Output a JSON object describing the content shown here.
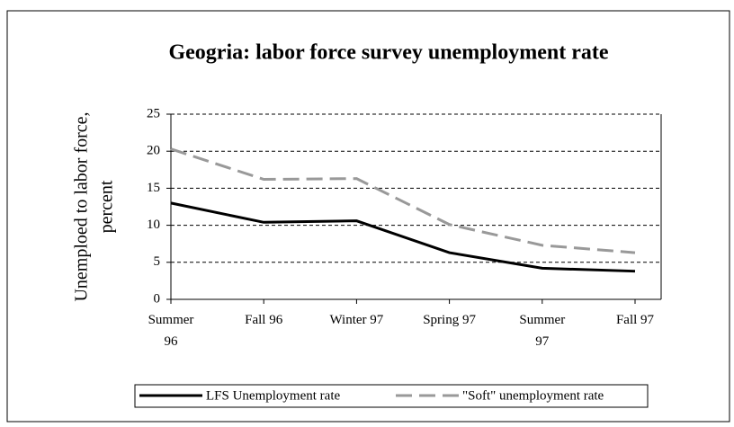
{
  "chart_data": {
    "type": "line",
    "title": "Geogria: labor force survey unemployment rate",
    "ylabel": [
      "Unemploed to labor force,",
      "percent"
    ],
    "categories": [
      "Summer 96",
      "Fall 96",
      "Winter 97",
      "Spring 97",
      "Summer 97",
      "Fall 97"
    ],
    "series": [
      {
        "name": "LFS Unemployment rate",
        "color": "#000000",
        "dash": false,
        "values": [
          13.0,
          10.4,
          10.6,
          6.3,
          4.2,
          3.8
        ]
      },
      {
        "name": "\"Soft\" unemployment rate",
        "color": "#999999",
        "dash": true,
        "values": [
          20.3,
          16.2,
          16.3,
          10.1,
          7.3,
          6.3
        ]
      }
    ],
    "ylim": [
      0,
      25
    ],
    "yticks": [
      0,
      5,
      10,
      15,
      20,
      25
    ],
    "grid": true,
    "legend": "bottom"
  }
}
